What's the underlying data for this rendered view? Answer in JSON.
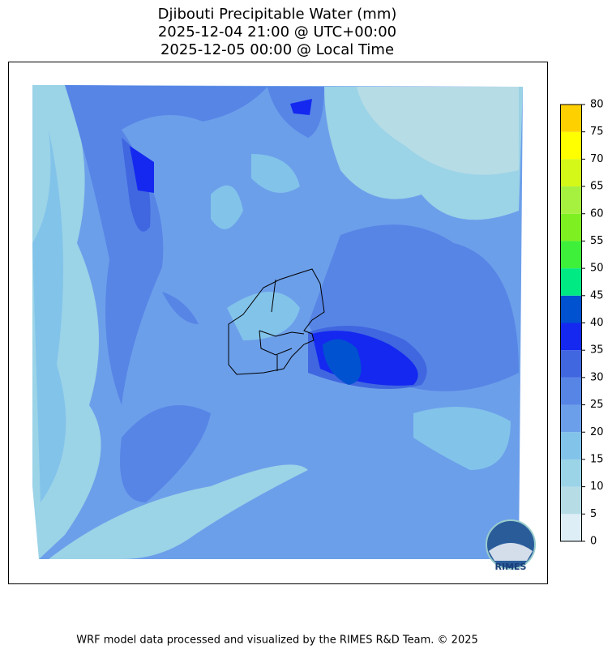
{
  "title": [
    "Djibouti Precipitable Water (mm)",
    "2025-12-04 21:00 @ UTC+00:00",
    "2025-12-05 00:00 @ Local Time"
  ],
  "colorbar": {
    "ticks": [
      0,
      5,
      10,
      15,
      20,
      25,
      30,
      35,
      40,
      45,
      50,
      55,
      60,
      65,
      70,
      75,
      80
    ],
    "colors": [
      "#ddeef6",
      "#b6dce6",
      "#9bd3e7",
      "#82c3ea",
      "#6c9fea",
      "#5785e6",
      "#4066e0",
      "#1428f0",
      "#0052d0",
      "#00ea84",
      "#3ef03a",
      "#7ef022",
      "#a6f040",
      "#d4f818",
      "#ffff00",
      "#ffd000"
    ]
  },
  "logo_text": "RIMES",
  "footer": "WRF model data processed and visualized by the RIMES R&D Team. © 2025"
}
